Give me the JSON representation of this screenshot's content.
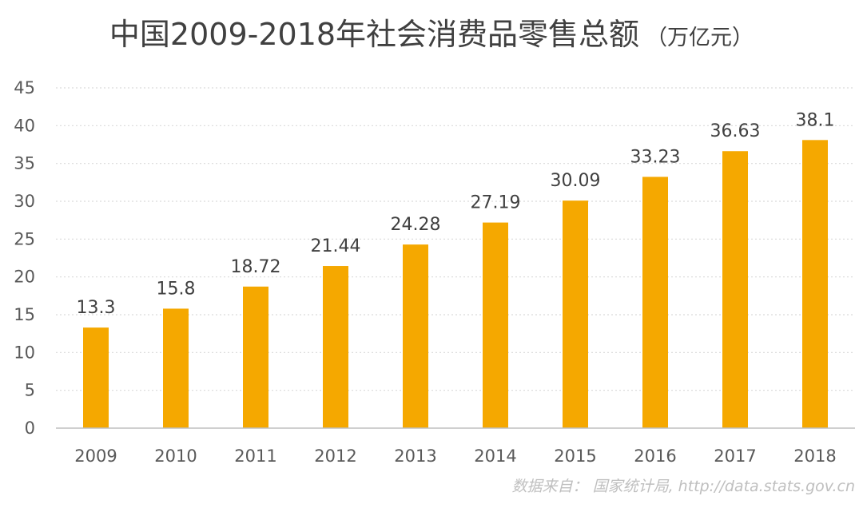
{
  "chart_data": {
    "type": "bar",
    "title": "中国2009-2018年社会消费品零售总额",
    "subtitle": "（万亿元）",
    "categories": [
      "2009",
      "2010",
      "2011",
      "2012",
      "2013",
      "2014",
      "2015",
      "2016",
      "2017",
      "2018"
    ],
    "values": [
      13.3,
      15.8,
      18.72,
      21.44,
      24.28,
      27.19,
      30.09,
      33.23,
      36.63,
      38.1
    ],
    "value_labels": [
      "13.3",
      "15.8",
      "18.72",
      "21.44",
      "24.28",
      "27.19",
      "30.09",
      "33.23",
      "36.63",
      "38.1"
    ],
    "ylim": [
      0,
      45
    ],
    "yticks": [
      "0",
      "5",
      "10",
      "15",
      "20",
      "25",
      "30",
      "35",
      "40",
      "45"
    ],
    "xlabel": "",
    "ylabel": "",
    "grid": true,
    "legend": "none",
    "bar_color": "#F5A800",
    "grid_color": "#d9d9d9"
  },
  "source_note": "数据来自： 国家统计局, http://data.stats.gov.cn"
}
